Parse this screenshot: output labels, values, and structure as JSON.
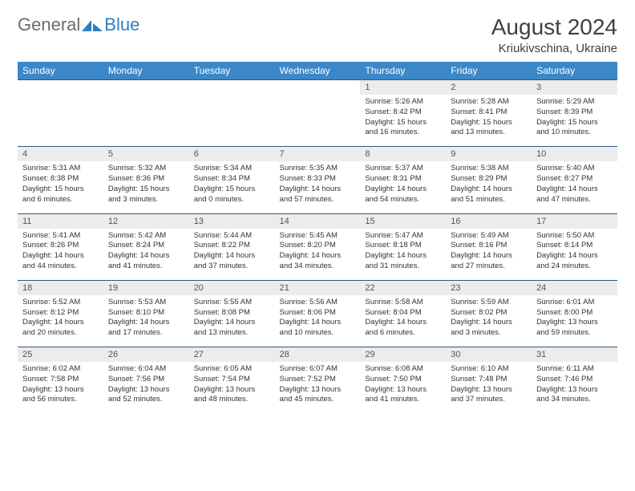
{
  "logo": {
    "text_general": "General",
    "text_blue": "Blue"
  },
  "title": "August 2024",
  "location": "Kriukivschina, Ukraine",
  "colors": {
    "header_bg": "#3b87c8",
    "header_text": "#ffffff",
    "daynum_bg": "#ececec",
    "border": "#2a5a8a",
    "logo_grey": "#6b6b6b",
    "logo_blue": "#2f7ec2",
    "title_color": "#404040"
  },
  "daysOfWeek": [
    "Sunday",
    "Monday",
    "Tuesday",
    "Wednesday",
    "Thursday",
    "Friday",
    "Saturday"
  ],
  "weeks": [
    [
      null,
      null,
      null,
      null,
      {
        "n": "1",
        "sr": "5:26 AM",
        "ss": "8:42 PM",
        "dl": "15 hours and 16 minutes."
      },
      {
        "n": "2",
        "sr": "5:28 AM",
        "ss": "8:41 PM",
        "dl": "15 hours and 13 minutes."
      },
      {
        "n": "3",
        "sr": "5:29 AM",
        "ss": "8:39 PM",
        "dl": "15 hours and 10 minutes."
      }
    ],
    [
      {
        "n": "4",
        "sr": "5:31 AM",
        "ss": "8:38 PM",
        "dl": "15 hours and 6 minutes."
      },
      {
        "n": "5",
        "sr": "5:32 AM",
        "ss": "8:36 PM",
        "dl": "15 hours and 3 minutes."
      },
      {
        "n": "6",
        "sr": "5:34 AM",
        "ss": "8:34 PM",
        "dl": "15 hours and 0 minutes."
      },
      {
        "n": "7",
        "sr": "5:35 AM",
        "ss": "8:33 PM",
        "dl": "14 hours and 57 minutes."
      },
      {
        "n": "8",
        "sr": "5:37 AM",
        "ss": "8:31 PM",
        "dl": "14 hours and 54 minutes."
      },
      {
        "n": "9",
        "sr": "5:38 AM",
        "ss": "8:29 PM",
        "dl": "14 hours and 51 minutes."
      },
      {
        "n": "10",
        "sr": "5:40 AM",
        "ss": "8:27 PM",
        "dl": "14 hours and 47 minutes."
      }
    ],
    [
      {
        "n": "11",
        "sr": "5:41 AM",
        "ss": "8:26 PM",
        "dl": "14 hours and 44 minutes."
      },
      {
        "n": "12",
        "sr": "5:42 AM",
        "ss": "8:24 PM",
        "dl": "14 hours and 41 minutes."
      },
      {
        "n": "13",
        "sr": "5:44 AM",
        "ss": "8:22 PM",
        "dl": "14 hours and 37 minutes."
      },
      {
        "n": "14",
        "sr": "5:45 AM",
        "ss": "8:20 PM",
        "dl": "14 hours and 34 minutes."
      },
      {
        "n": "15",
        "sr": "5:47 AM",
        "ss": "8:18 PM",
        "dl": "14 hours and 31 minutes."
      },
      {
        "n": "16",
        "sr": "5:49 AM",
        "ss": "8:16 PM",
        "dl": "14 hours and 27 minutes."
      },
      {
        "n": "17",
        "sr": "5:50 AM",
        "ss": "8:14 PM",
        "dl": "14 hours and 24 minutes."
      }
    ],
    [
      {
        "n": "18",
        "sr": "5:52 AM",
        "ss": "8:12 PM",
        "dl": "14 hours and 20 minutes."
      },
      {
        "n": "19",
        "sr": "5:53 AM",
        "ss": "8:10 PM",
        "dl": "14 hours and 17 minutes."
      },
      {
        "n": "20",
        "sr": "5:55 AM",
        "ss": "8:08 PM",
        "dl": "14 hours and 13 minutes."
      },
      {
        "n": "21",
        "sr": "5:56 AM",
        "ss": "8:06 PM",
        "dl": "14 hours and 10 minutes."
      },
      {
        "n": "22",
        "sr": "5:58 AM",
        "ss": "8:04 PM",
        "dl": "14 hours and 6 minutes."
      },
      {
        "n": "23",
        "sr": "5:59 AM",
        "ss": "8:02 PM",
        "dl": "14 hours and 3 minutes."
      },
      {
        "n": "24",
        "sr": "6:01 AM",
        "ss": "8:00 PM",
        "dl": "13 hours and 59 minutes."
      }
    ],
    [
      {
        "n": "25",
        "sr": "6:02 AM",
        "ss": "7:58 PM",
        "dl": "13 hours and 56 minutes."
      },
      {
        "n": "26",
        "sr": "6:04 AM",
        "ss": "7:56 PM",
        "dl": "13 hours and 52 minutes."
      },
      {
        "n": "27",
        "sr": "6:05 AM",
        "ss": "7:54 PM",
        "dl": "13 hours and 48 minutes."
      },
      {
        "n": "28",
        "sr": "6:07 AM",
        "ss": "7:52 PM",
        "dl": "13 hours and 45 minutes."
      },
      {
        "n": "29",
        "sr": "6:08 AM",
        "ss": "7:50 PM",
        "dl": "13 hours and 41 minutes."
      },
      {
        "n": "30",
        "sr": "6:10 AM",
        "ss": "7:48 PM",
        "dl": "13 hours and 37 minutes."
      },
      {
        "n": "31",
        "sr": "6:11 AM",
        "ss": "7:46 PM",
        "dl": "13 hours and 34 minutes."
      }
    ]
  ],
  "labels": {
    "sunrise": "Sunrise:",
    "sunset": "Sunset:",
    "daylight": "Daylight:"
  }
}
